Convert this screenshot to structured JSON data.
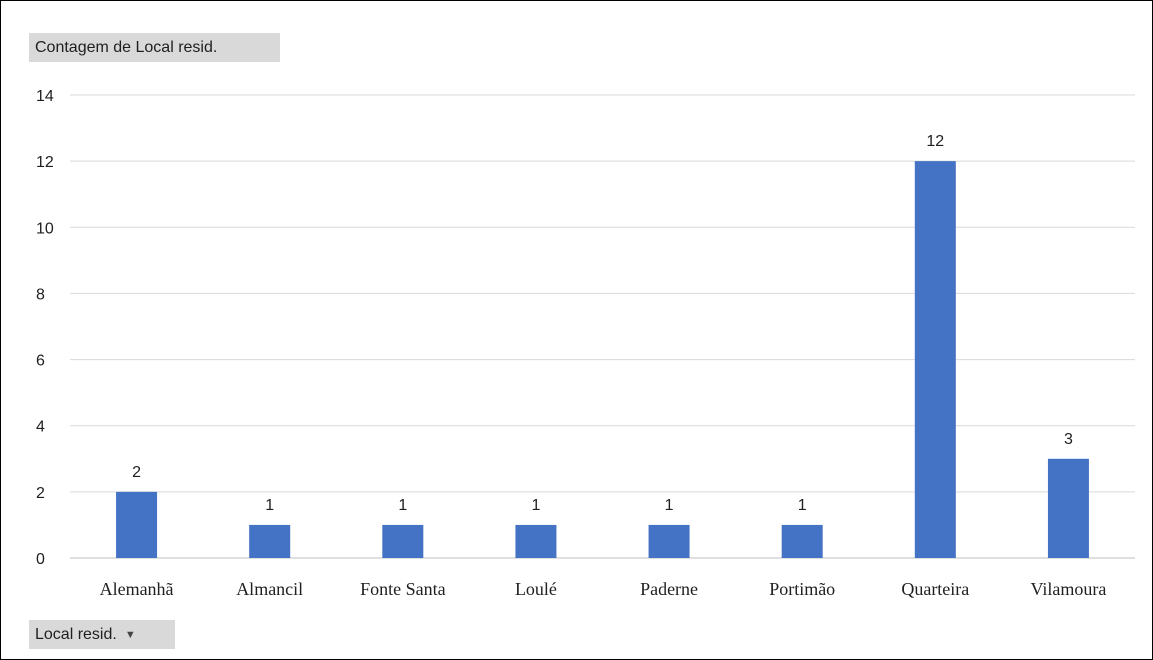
{
  "values_field_button": "Contagem de Local resid.",
  "axis_field_button": "Local resid.",
  "axis_field_arrow": "dropdown-arrow-icon",
  "colors": {
    "bar": "#4472c4",
    "grid": "#d9d9d9",
    "axis": "#bfbfbf"
  },
  "chart_data": {
    "type": "bar",
    "title": "",
    "xlabel": "",
    "ylabel": "",
    "categories": [
      "Alemanhã",
      "Almancil",
      "Fonte Santa",
      "Loulé",
      "Paderne",
      "Portimão",
      "Quarteira",
      "Vilamoura"
    ],
    "values": [
      2,
      1,
      1,
      1,
      1,
      1,
      12,
      3
    ],
    "data_labels": [
      "2",
      "1",
      "1",
      "1",
      "1",
      "1",
      "12",
      "3"
    ],
    "ylim": [
      0,
      14
    ],
    "yticks": [
      0,
      2,
      4,
      6,
      8,
      10,
      12,
      14
    ],
    "ytick_labels": [
      "0",
      "2",
      "4",
      "6",
      "8",
      "10",
      "12",
      "14"
    ],
    "grid": true,
    "legend": "none"
  }
}
